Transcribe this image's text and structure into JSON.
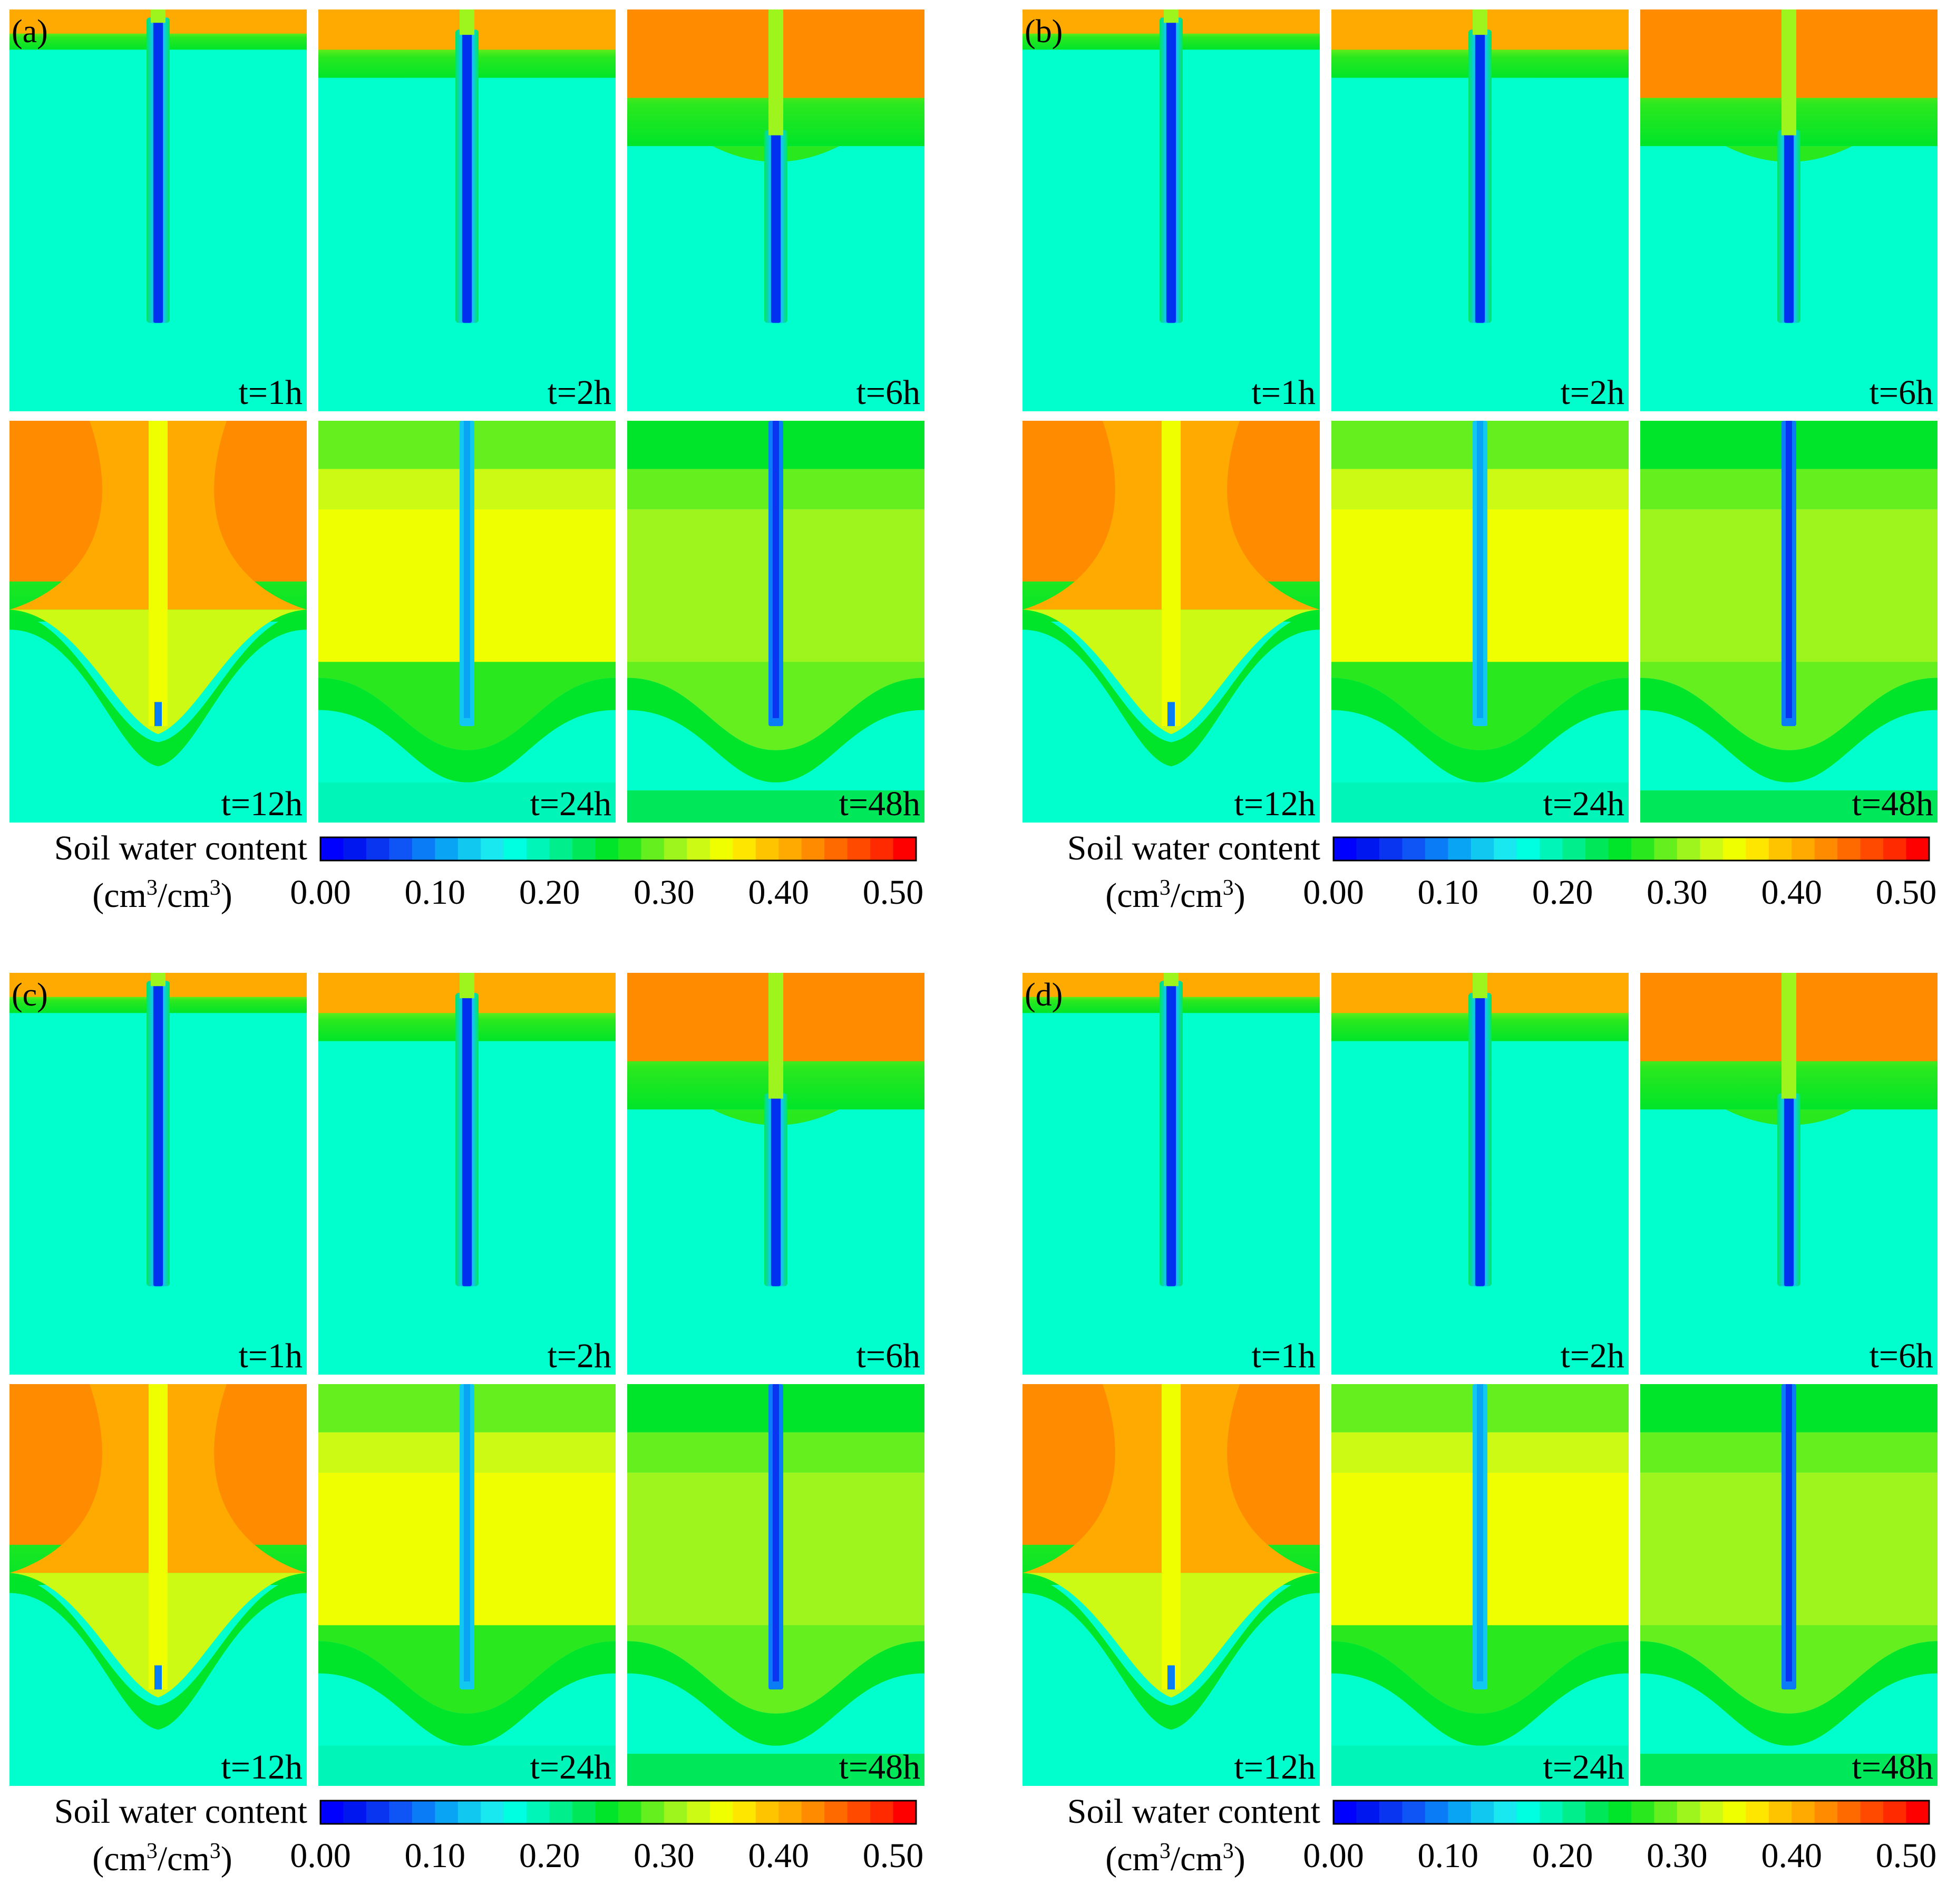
{
  "figure": {
    "layout": "2x2 groups, each a 2x3 grid of contour panels",
    "colorbar": {
      "label": "Soil water content",
      "units_prefix": "(cm",
      "units_sup1": "3",
      "units_mid": "/cm",
      "units_sup2": "3",
      "units_suffix": ")",
      "ticks": [
        "0.00",
        "0.10",
        "0.20",
        "0.30",
        "0.40",
        "0.50"
      ],
      "range": [
        0.0,
        0.52
      ],
      "step": 0.02,
      "colors": [
        "#0000ff",
        "#0018ef",
        "#0a35f0",
        "#0f55f5",
        "#0a7cf5",
        "#0aa4f5",
        "#10c8f0",
        "#1ae8f0",
        "#00ffe0",
        "#00f5b8",
        "#00ee8c",
        "#00e85a",
        "#00e52a",
        "#2ae81e",
        "#66ef1e",
        "#9ef51e",
        "#ccfa14",
        "#f0ff00",
        "#ffe600",
        "#ffc400",
        "#ffaa00",
        "#ff8c00",
        "#ff6a00",
        "#ff4a00",
        "#ff2a00",
        "#ff0000"
      ]
    },
    "colors": {
      "background": "#00ffcc",
      "wet_top": "#ff8c00",
      "furrow_dry": "#0030f0"
    }
  },
  "chart_data": [
    {
      "type": "heatmap",
      "group": "(a)",
      "variable": "Soil water content (cm3/cm3)",
      "panels": [
        {
          "label": "t=1h",
          "front_depth_frac": 0.08,
          "min": 0.0,
          "max": 0.42
        },
        {
          "label": "t=2h",
          "front_depth_frac": 0.14,
          "min": 0.0,
          "max": 0.4
        },
        {
          "label": "t=6h",
          "front_depth_frac": 0.3,
          "min": 0.0,
          "max": 0.4
        },
        {
          "label": "t=12h",
          "front_depth_frac": 0.5,
          "min": 0.0,
          "max": 0.4
        },
        {
          "label": "t=24h",
          "front_depth_frac": 0.78,
          "min": 0.0,
          "max": 0.36
        },
        {
          "label": "t=48h",
          "front_depth_frac": 0.98,
          "min": 0.0,
          "max": 0.32
        }
      ]
    },
    {
      "type": "heatmap",
      "group": "(b)",
      "variable": "Soil water content (cm3/cm3)",
      "panels": [
        {
          "label": "t=1h",
          "front_depth_frac": 0.08,
          "min": 0.0,
          "max": 0.42
        },
        {
          "label": "t=2h",
          "front_depth_frac": 0.14,
          "min": 0.0,
          "max": 0.4
        },
        {
          "label": "t=6h",
          "front_depth_frac": 0.3,
          "min": 0.0,
          "max": 0.4
        },
        {
          "label": "t=12h",
          "front_depth_frac": 0.5,
          "min": 0.0,
          "max": 0.4
        },
        {
          "label": "t=24h",
          "front_depth_frac": 0.78,
          "min": 0.0,
          "max": 0.36
        },
        {
          "label": "t=48h",
          "front_depth_frac": 0.98,
          "min": 0.0,
          "max": 0.32
        }
      ]
    },
    {
      "type": "heatmap",
      "group": "(c)",
      "variable": "Soil water content (cm3/cm3)",
      "panels": [
        {
          "label": "t=1h",
          "front_depth_frac": 0.08,
          "min": 0.0,
          "max": 0.42
        },
        {
          "label": "t=2h",
          "front_depth_frac": 0.14,
          "min": 0.0,
          "max": 0.4
        },
        {
          "label": "t=6h",
          "front_depth_frac": 0.3,
          "min": 0.0,
          "max": 0.4
        },
        {
          "label": "t=12h",
          "front_depth_frac": 0.5,
          "min": 0.0,
          "max": 0.4
        },
        {
          "label": "t=24h",
          "front_depth_frac": 0.78,
          "min": 0.0,
          "max": 0.36
        },
        {
          "label": "t=48h",
          "front_depth_frac": 0.98,
          "min": 0.0,
          "max": 0.32
        }
      ]
    },
    {
      "type": "heatmap",
      "group": "(d)",
      "variable": "Soil water content (cm3/cm3)",
      "panels": [
        {
          "label": "t=1h",
          "front_depth_frac": 0.08,
          "min": 0.0,
          "max": 0.42
        },
        {
          "label": "t=2h",
          "front_depth_frac": 0.14,
          "min": 0.0,
          "max": 0.4
        },
        {
          "label": "t=6h",
          "front_depth_frac": 0.3,
          "min": 0.0,
          "max": 0.4
        },
        {
          "label": "t=12h",
          "front_depth_frac": 0.5,
          "min": 0.0,
          "max": 0.4
        },
        {
          "label": "t=24h",
          "front_depth_frac": 0.78,
          "min": 0.0,
          "max": 0.36
        },
        {
          "label": "t=48h",
          "front_depth_frac": 0.98,
          "min": 0.0,
          "max": 0.32
        }
      ]
    }
  ]
}
